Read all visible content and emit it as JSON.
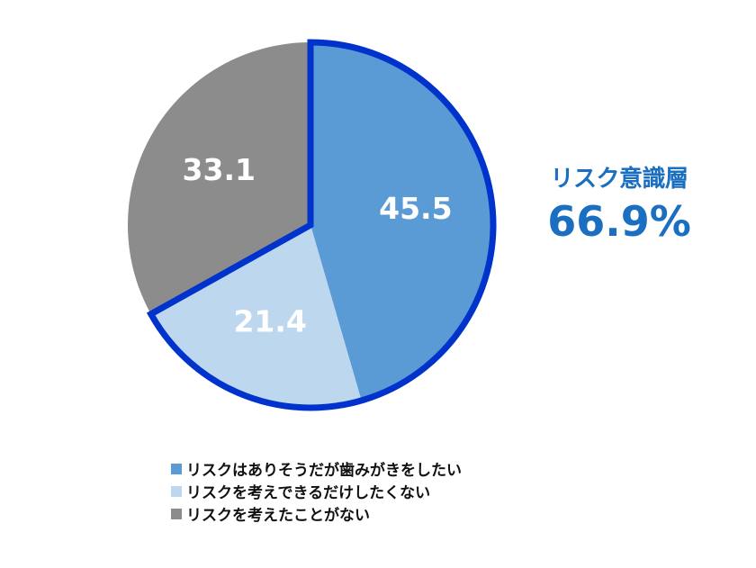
{
  "chart_data": {
    "type": "pie",
    "categories": [
      "リスクはありそうだが歯みがきをしたい",
      "リスクを考えできるだけしたくない",
      "リスクを考えたことがない"
    ],
    "values": [
      45.5,
      21.4,
      33.1
    ],
    "colors": [
      "#5b9bd5",
      "#bdd7ee",
      "#8c8c8c"
    ],
    "highlight_color": "#0033cc",
    "legend_position": "bottom"
  },
  "callout": {
    "title": "リスク意識層",
    "value": "66.9%",
    "color": "#1b6fc0"
  }
}
